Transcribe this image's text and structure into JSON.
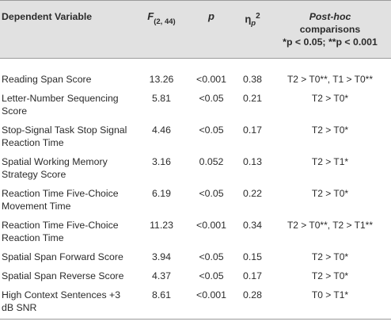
{
  "header": {
    "dependent_variable": "Dependent Variable",
    "f_stat": "F",
    "f_df": "(2, 44)",
    "p": "p",
    "eta": "η",
    "eta_sub": "p",
    "eta_sup": "2",
    "post_hoc_title": "Post-hoc",
    "post_hoc_sub": "comparisons",
    "post_hoc_sig_1": "*p < 0.05; ",
    "post_hoc_sig_2": "**p < 0.001"
  },
  "rows": [
    {
      "label": "Reading Span Score",
      "f": "13.26",
      "p": "<0.001",
      "eta": "0.38",
      "post_hoc": "T2 > T0**, T1 > T0**"
    },
    {
      "label": "Letter-Number Sequencing Score",
      "f": "5.81",
      "p": "<0.05",
      "eta": "0.21",
      "post_hoc": "T2 > T0*"
    },
    {
      "label": "Stop-Signal Task Stop Signal Reaction Time",
      "f": "4.46",
      "p": "<0.05",
      "eta": "0.17",
      "post_hoc": "T2 > T0*"
    },
    {
      "label": "Spatial Working Memory Strategy Score",
      "f": "3.16",
      "p": "0.052",
      "eta": "0.13",
      "post_hoc": "T2 > T1*"
    },
    {
      "label": "Reaction Time Five-Choice Movement Time",
      "f": "6.19",
      "p": "<0.05",
      "eta": "0.22",
      "post_hoc": "T2 > T0*"
    },
    {
      "label": "Reaction Time Five-Choice Reaction Time",
      "f": "11.23",
      "p": "<0.001",
      "eta": "0.34",
      "post_hoc": "T2 > T0**, T2 > T1**"
    },
    {
      "label": "Spatial Span Forward Score",
      "f": "3.94",
      "p": "<0.05",
      "eta": "0.15",
      "post_hoc": "T2 > T0*"
    },
    {
      "label": "Spatial Span Reverse Score",
      "f": "4.37",
      "p": "<0.05",
      "eta": "0.17",
      "post_hoc": "T2 > T0*"
    },
    {
      "label": "High Context Sentences +3 dB SNR",
      "f": "8.61",
      "p": "<0.001",
      "eta": "0.28",
      "post_hoc": "T0 > T1*"
    }
  ]
}
